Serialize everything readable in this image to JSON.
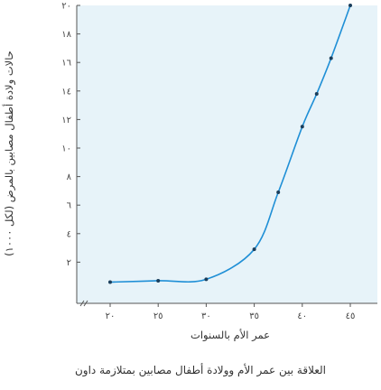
{
  "colors": {
    "plot_background": "#e7f3f9",
    "curve": "#1f8fd6",
    "point": "#1a3e5c",
    "axis": "#555555",
    "grid": "#c9d9e2"
  },
  "chart_data": {
    "type": "line",
    "title": "العلاقة بين عمر الأم وولادة أطفال مصابين بمتلازمة داون",
    "xlabel": "عمر الأم بالسنوات",
    "ylabel": "حالات ولادة أطفال مصابين بالمرض (لكل ١٠٠٠)",
    "xlim": [
      15,
      47
    ],
    "ylim": [
      0,
      20
    ],
    "x_ticks": [
      {
        "value": 20,
        "label": "٢٠"
      },
      {
        "value": 25,
        "label": "٢٥"
      },
      {
        "value": 30,
        "label": "٣٠"
      },
      {
        "value": 35,
        "label": "٣٥"
      },
      {
        "value": 40,
        "label": "٤٠"
      },
      {
        "value": 45,
        "label": "٤٥"
      }
    ],
    "y_ticks": [
      {
        "value": 2,
        "label": "٢"
      },
      {
        "value": 4,
        "label": "٤"
      },
      {
        "value": 6,
        "label": "٦"
      },
      {
        "value": 8,
        "label": "٨"
      },
      {
        "value": 10,
        "label": "١٠"
      },
      {
        "value": 12,
        "label": "١٢"
      },
      {
        "value": 14,
        "label": "١٤"
      },
      {
        "value": 16,
        "label": "١٦"
      },
      {
        "value": 18,
        "label": "١٨"
      },
      {
        "value": 20,
        "label": "٢٠"
      }
    ],
    "points": [
      {
        "x": 20,
        "y": 0.6
      },
      {
        "x": 25,
        "y": 0.7
      },
      {
        "x": 30,
        "y": 0.8
      },
      {
        "x": 35,
        "y": 2.9
      },
      {
        "x": 37.5,
        "y": 6.9
      },
      {
        "x": 40,
        "y": 11.5
      },
      {
        "x": 41.5,
        "y": 13.8
      },
      {
        "x": 43,
        "y": 16.3
      },
      {
        "x": 45,
        "y": 20
      }
    ],
    "grid": false,
    "legend": "none"
  }
}
